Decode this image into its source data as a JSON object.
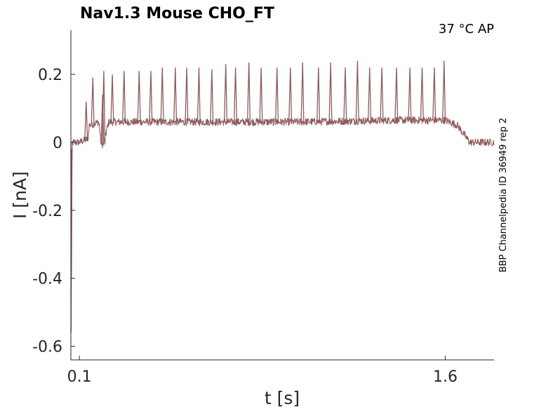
{
  "chart_data": {
    "type": "line",
    "title": "Nav1.3  Mouse  CHO_FT",
    "annotation": "37 °C  AP",
    "side_label": "BBP Channelpedia ID 36949 rep 2",
    "xlabel": "t [s]",
    "ylabel": "I [nA]",
    "xlim": [
      0.065,
      1.8
    ],
    "ylim": [
      -0.64,
      0.33
    ],
    "x_ticks": [
      0.1,
      1.6
    ],
    "x_tick_labels": [
      "0.1",
      "1.6"
    ],
    "y_ticks": [
      0.2,
      0,
      -0.2,
      -0.4,
      -0.6
    ],
    "y_tick_labels": [
      "0.2",
      "0",
      "-0.2",
      "-0.4",
      "-0.6"
    ],
    "grid": false,
    "series": [
      {
        "color": "#8e5b5b",
        "trace": {
          "x": [
            0.065,
            0.067,
            0.07,
            0.1,
            0.135,
            0.14,
            0.18,
            0.19,
            0.2,
            0.22,
            0.5,
            1.0,
            1.4,
            1.6,
            1.65,
            1.7,
            1.8
          ],
          "y": [
            0.0,
            -0.56,
            0.0,
            0.0,
            0.01,
            0.05,
            0.06,
            -0.01,
            0.0,
            0.06,
            0.06,
            0.06,
            0.065,
            0.065,
            0.05,
            0.0,
            0.0
          ]
        },
        "spike_times": [
          0.2,
          0.235,
          0.283,
          0.345,
          0.393,
          0.44,
          0.493,
          0.54,
          0.59,
          0.643,
          0.7,
          0.74,
          0.795,
          0.845,
          0.91,
          0.965,
          1.015,
          1.08,
          1.13,
          1.19,
          1.24,
          1.29,
          1.34,
          1.4,
          1.455,
          1.505,
          1.555,
          1.595
        ],
        "spike_peaks": [
          0.21,
          0.2,
          0.21,
          0.21,
          0.21,
          0.22,
          0.22,
          0.22,
          0.22,
          0.215,
          0.23,
          0.22,
          0.235,
          0.22,
          0.22,
          0.22,
          0.235,
          0.22,
          0.235,
          0.22,
          0.24,
          0.22,
          0.22,
          0.22,
          0.22,
          0.22,
          0.22,
          0.24
        ],
        "early_spikes": {
          "x": [
            0.128,
            0.155,
            0.195
          ],
          "y": [
            0.12,
            0.19,
            0.14
          ]
        }
      }
    ]
  }
}
